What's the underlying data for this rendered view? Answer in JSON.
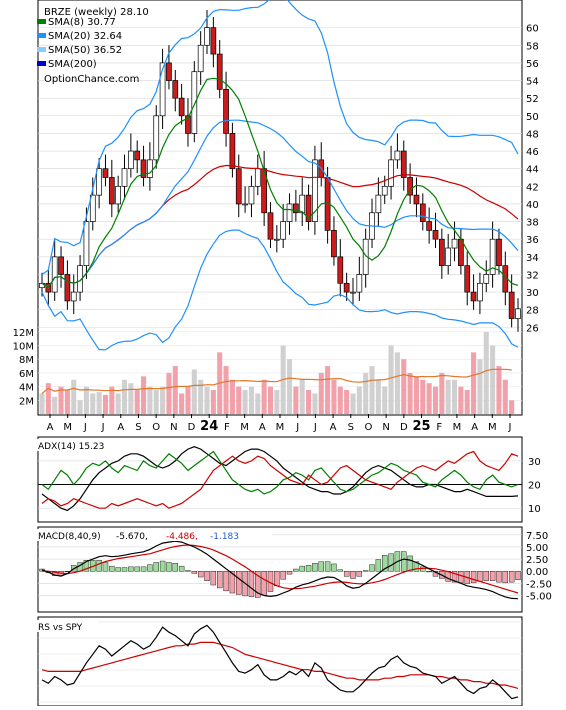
{
  "chart_data": [
    {
      "type": "line",
      "title": "BRZE (weekly) 28.10",
      "watermark": "OptionChance.com",
      "legend_placement": "top-left",
      "series": [
        {
          "name": "SMA(8)",
          "label": "SMA(8) 30.77",
          "color": "#008000"
        },
        {
          "name": "SMA(20)",
          "label": "SMA(20) 32.64",
          "color": "#1e90ff"
        },
        {
          "name": "SMA(50)",
          "label": "SMA(50) 36.52",
          "color": "#87cefa"
        },
        {
          "name": "SMA(200)",
          "label": "SMA(200)",
          "color": "#0000cd"
        }
      ],
      "price": {
        "ylim": [
          24,
          62
        ],
        "ticks": [
          "26",
          "28",
          "30",
          "32",
          "34",
          "36",
          "38",
          "40",
          "42",
          "44",
          "46",
          "48",
          "50",
          "52",
          "54",
          "56",
          "58",
          "60"
        ],
        "close": [
          31,
          30,
          34,
          32,
          29,
          30,
          33,
          38,
          41,
          44,
          43,
          40,
          42,
          44,
          46,
          45,
          43,
          45,
          50,
          56,
          54,
          52,
          50,
          48,
          55,
          58,
          60,
          57,
          53,
          48,
          44,
          40,
          40,
          42,
          44,
          39,
          36,
          36,
          38,
          40,
          39,
          41,
          38,
          45,
          43,
          37,
          34,
          31,
          30,
          30,
          32,
          36,
          39,
          41,
          42,
          45,
          46,
          43,
          41,
          40,
          38,
          37,
          36,
          33,
          35,
          36,
          33,
          30,
          29,
          31,
          32,
          36,
          33,
          30,
          27,
          28.1
        ]
      },
      "volume": {
        "ylim": [
          0,
          13
        ],
        "ticks": [
          "2M",
          "4M",
          "6M",
          "8M",
          "10M",
          "12M"
        ],
        "values": [
          3,
          4.5,
          2.5,
          4,
          3.5,
          5,
          2,
          4,
          3,
          3.2,
          2.8,
          4,
          3,
          5,
          4.5,
          3.5,
          5.5,
          4,
          3.5,
          4,
          6,
          7,
          3,
          4,
          6.5,
          5,
          4,
          3.5,
          9,
          7,
          5,
          4,
          3.5,
          4,
          3,
          5,
          4,
          3.5,
          10,
          8,
          4,
          5,
          3.5,
          3,
          6,
          7,
          5,
          4,
          3.5,
          3,
          4,
          6,
          7,
          5,
          4,
          10,
          9,
          8,
          6,
          5.5,
          5,
          4.5,
          4,
          6,
          5,
          5,
          4,
          3.5,
          9,
          8,
          12,
          10,
          7,
          5,
          2
        ]
      },
      "x_labels": [
        "A",
        "M",
        "J",
        "J",
        "A",
        "S",
        "O",
        "N",
        "D",
        "24",
        "F",
        "M",
        "A",
        "M",
        "J",
        "J",
        "A",
        "S",
        "O",
        "N",
        "D",
        "25",
        "F",
        "M",
        "A",
        "M",
        "J"
      ]
    },
    {
      "type": "line",
      "title": "ADX(14) 15.23",
      "ylim": [
        5,
        38
      ],
      "ticks": [
        "10",
        "20",
        "30"
      ],
      "series": [
        {
          "name": "ADX",
          "color": "#000000",
          "values": [
            16,
            14,
            12,
            10,
            9,
            11,
            14,
            18,
            22,
            25,
            27,
            29,
            30,
            32,
            33,
            33,
            32,
            30,
            28,
            27,
            28,
            30,
            33,
            35,
            36,
            35,
            33,
            31,
            29,
            28,
            30,
            32,
            34,
            35,
            35,
            34,
            32,
            30,
            27,
            25,
            23,
            21,
            19,
            18,
            17,
            17,
            16,
            16,
            17,
            19,
            22,
            25,
            27,
            28,
            27,
            26,
            24,
            22,
            20,
            19,
            19,
            20,
            20,
            19,
            18,
            17,
            17,
            18,
            17,
            16,
            15,
            15,
            15,
            15,
            15,
            15.2
          ]
        },
        {
          "name": "+DI",
          "color": "#008000",
          "values": [
            20,
            18,
            22,
            26,
            24,
            20,
            23,
            27,
            29,
            28,
            30,
            27,
            25,
            28,
            27,
            26,
            30,
            28,
            27,
            30,
            33,
            31,
            29,
            26,
            28,
            30,
            32,
            34,
            30,
            26,
            22,
            20,
            18,
            17,
            18,
            16,
            17,
            19,
            22,
            23,
            25,
            24,
            22,
            26,
            27,
            24,
            21,
            18,
            17,
            18,
            20,
            22,
            24,
            25,
            27,
            29,
            28,
            26,
            25,
            24,
            21,
            20,
            19,
            22,
            24,
            26,
            24,
            21,
            19,
            18,
            22,
            24,
            21,
            20,
            19,
            20
          ]
        },
        {
          "name": "-DI",
          "color": "#cc0000",
          "values": [
            12,
            14,
            13,
            11,
            12,
            14,
            13,
            12,
            11,
            10,
            10,
            12,
            11,
            12,
            13,
            14,
            13,
            12,
            11,
            12,
            10,
            11,
            12,
            14,
            16,
            18,
            22,
            26,
            28,
            30,
            32,
            30,
            29,
            30,
            32,
            31,
            28,
            26,
            24,
            22,
            21,
            20,
            24,
            22,
            20,
            21,
            24,
            27,
            28,
            26,
            24,
            22,
            21,
            20,
            19,
            18,
            21,
            23,
            25,
            27,
            28,
            27,
            26,
            28,
            30,
            29,
            31,
            33,
            34,
            30,
            28,
            27,
            26,
            29,
            33,
            32
          ]
        }
      ]
    },
    {
      "type": "line",
      "title": "MACD(8,40,9)",
      "macd_label": "-5.670,",
      "signal_label": "-4.486,",
      "hist_label": "-1.183",
      "ylim": [
        -8,
        8.5
      ],
      "ticks": [
        "-5.00",
        "-2.50",
        "0.00",
        "2.50",
        "5.00",
        "7.50"
      ],
      "series": [
        {
          "name": "MACD",
          "color": "#000000",
          "values": [
            0.3,
            -0.2,
            -0.8,
            -1,
            -0.5,
            0.5,
            1.2,
            2,
            2.5,
            3,
            3.2,
            3,
            3.1,
            3.3,
            3.6,
            3.8,
            4,
            4.5,
            5.2,
            5.8,
            6,
            6.2,
            6,
            5.5,
            5,
            4.3,
            3.5,
            2.5,
            1.5,
            0.5,
            -0.5,
            -1.5,
            -2.5,
            -3.5,
            -4.5,
            -5,
            -5.2,
            -5,
            -4.5,
            -4,
            -3.3,
            -2.8,
            -2.5,
            -2,
            -1.5,
            -1.2,
            -1.3,
            -2,
            -3,
            -3.5,
            -3.3,
            -2.5,
            -1.5,
            -0.5,
            0.5,
            1.2,
            2,
            2.5,
            2.3,
            1.8,
            1.2,
            0.5,
            -0.2,
            -0.8,
            -1.5,
            -2,
            -2.5,
            -3,
            -3.3,
            -3.5,
            -3.8,
            -4.2,
            -4.8,
            -5.3,
            -5.6,
            -5.67
          ]
        },
        {
          "name": "Signal",
          "color": "#cc0000",
          "values": [
            0,
            0,
            -0.2,
            -0.4,
            -0.5,
            -0.3,
            0,
            0.5,
            1,
            1.5,
            2,
            2.3,
            2.6,
            2.8,
            3,
            3.2,
            3.4,
            3.6,
            4,
            4.4,
            4.8,
            5.1,
            5.3,
            5.4,
            5.3,
            5.1,
            4.8,
            4.4,
            3.8,
            3.2,
            2.5,
            1.7,
            0.9,
            0,
            -0.9,
            -1.7,
            -2.4,
            -3,
            -3.4,
            -3.6,
            -3.6,
            -3.5,
            -3.3,
            -3.1,
            -2.8,
            -2.5,
            -2.3,
            -2.2,
            -2.3,
            -2.5,
            -2.6,
            -2.6,
            -2.4,
            -2.1,
            -1.7,
            -1.2,
            -0.7,
            -0.2,
            0.2,
            0.5,
            0.6,
            0.6,
            0.5,
            0.2,
            -0.1,
            -0.5,
            -0.9,
            -1.3,
            -1.7,
            -2.1,
            -2.5,
            -2.9,
            -3.3,
            -3.7,
            -4.1,
            -4.49
          ]
        }
      ]
    },
    {
      "type": "line",
      "title": "RS vs SPY",
      "series": [
        {
          "name": "RS",
          "color": "#000000",
          "values": [
            30,
            28,
            32,
            30,
            27,
            28,
            34,
            40,
            45,
            50,
            48,
            44,
            47,
            50,
            53,
            51,
            48,
            50,
            55,
            61,
            58,
            56,
            53,
            50,
            57,
            60,
            62,
            58,
            52,
            46,
            40,
            35,
            34,
            36,
            39,
            33,
            30,
            30,
            32,
            35,
            33,
            36,
            32,
            40,
            37,
            30,
            27,
            24,
            23,
            23,
            26,
            30,
            34,
            37,
            38,
            42,
            44,
            40,
            38,
            37,
            34,
            33,
            32,
            28,
            30,
            32,
            28,
            24,
            22,
            25,
            26,
            30,
            27,
            23,
            19,
            20
          ]
        },
        {
          "name": "RS avg",
          "color": "#cc0000",
          "values": [
            36,
            35,
            35,
            35,
            35,
            35,
            35,
            36,
            37,
            38,
            39,
            40,
            41,
            42,
            43,
            44,
            45,
            46,
            47,
            48,
            49,
            50,
            50,
            51,
            51,
            52,
            52,
            52,
            51,
            50,
            49,
            47,
            45,
            44,
            43,
            42,
            41,
            40,
            39,
            38,
            37,
            36,
            36,
            35,
            35,
            34,
            33,
            32,
            31,
            31,
            30,
            30,
            30,
            30,
            31,
            31,
            32,
            32,
            33,
            33,
            33,
            33,
            32,
            32,
            31,
            31,
            30,
            30,
            29,
            29,
            28,
            28,
            27,
            27,
            26,
            25
          ]
        }
      ]
    }
  ]
}
